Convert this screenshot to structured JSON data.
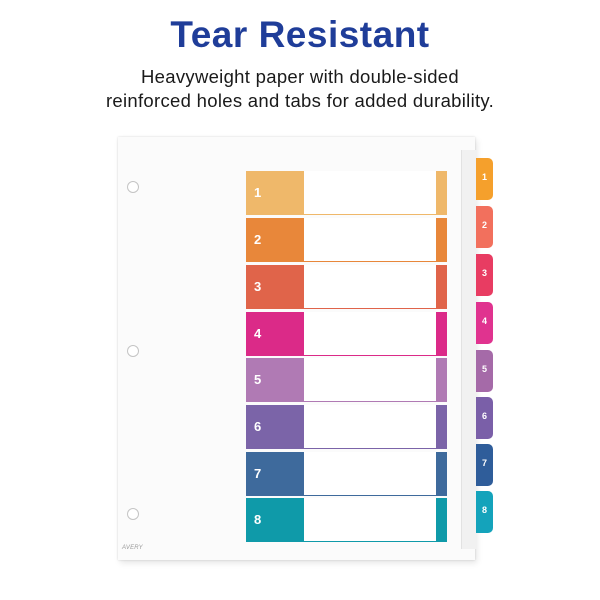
{
  "headline": "Tear Resistant",
  "subtitle": {
    "line1": "Heavyweight paper with double-sided",
    "line2": "reinforced holes and tabs for added durability."
  },
  "brand_logo": "AVERY",
  "toc_rows": [
    {
      "label": "1",
      "color": "#efb86a"
    },
    {
      "label": "2",
      "color": "#e8873a"
    },
    {
      "label": "3",
      "color": "#e0644a"
    },
    {
      "label": "4",
      "color": "#db2a88"
    },
    {
      "label": "5",
      "color": "#b07ab4"
    },
    {
      "label": "6",
      "color": "#7b64a8"
    },
    {
      "label": "7",
      "color": "#3e6a9c"
    },
    {
      "label": "8",
      "color": "#0f9aa9"
    }
  ],
  "side_tabs": [
    {
      "label": "1",
      "color": "#f5a02c"
    },
    {
      "label": "2",
      "color": "#f2705d"
    },
    {
      "label": "3",
      "color": "#e83c62"
    },
    {
      "label": "4",
      "color": "#e0338f"
    },
    {
      "label": "5",
      "color": "#a56aa8"
    },
    {
      "label": "6",
      "color": "#7a5fa8"
    },
    {
      "label": "7",
      "color": "#2f5d9a"
    },
    {
      "label": "8",
      "color": "#14a3bb"
    }
  ]
}
